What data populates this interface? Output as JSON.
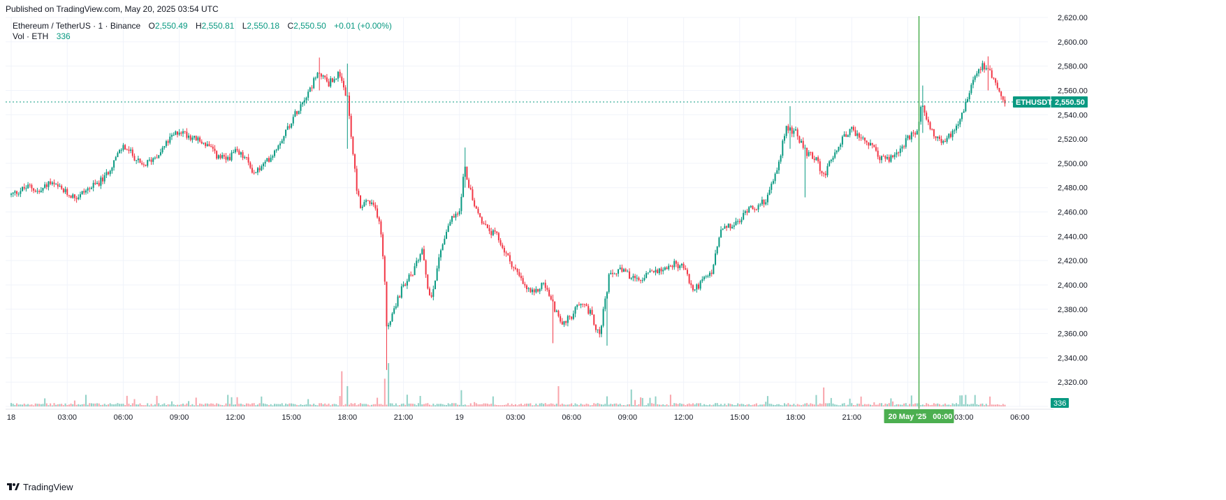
{
  "header": {
    "published": "Published on TradingView.com, May 20, 2025 03:54 UTC"
  },
  "legend": {
    "symbol": "Ethereum / TetherUS · 1 · Binance",
    "open_label": "O",
    "open": "2,550.49",
    "high_label": "H",
    "high": "2,550.81",
    "low_label": "L",
    "low": "2,550.18",
    "close_label": "C",
    "close": "2,550.50",
    "change": "+0.01 (+0.00%)",
    "vol_label": "Vol · ETH",
    "vol_value": "336"
  },
  "footer": {
    "brand": "TradingView"
  },
  "colors": {
    "up": "#089981",
    "down": "#f23645",
    "crosshair": "#4caf50",
    "grid": "#f0f3fa",
    "text": "#131722"
  },
  "chart_data": {
    "type": "candlestick",
    "symbol": "ETHUSDT",
    "interval": "1",
    "timezone": "UTC",
    "y_range": [
      2300,
      2620
    ],
    "y_ticks": [
      "2,620.00",
      "2,600.00",
      "2,580.00",
      "2,560.00",
      "2,540.00",
      "2,520.00",
      "2,500.00",
      "2,480.00",
      "2,460.00",
      "2,440.00",
      "2,420.00",
      "2,400.00",
      "2,380.00",
      "2,360.00",
      "2,340.00",
      "2,320.00",
      "2,300.00"
    ],
    "x_ticks": [
      "18",
      "03:00",
      "06:00",
      "09:00",
      "12:00",
      "15:00",
      "18:00",
      "21:00",
      "19",
      "03:00",
      "06:00",
      "09:00",
      "12:00",
      "15:00",
      "18:00",
      "21:00",
      "20",
      "03:00",
      "06:00"
    ],
    "x_tick_hours": [
      0,
      3,
      6,
      9,
      12,
      15,
      18,
      21,
      24,
      27,
      30,
      33,
      36,
      39,
      42,
      45,
      48,
      51,
      54
    ],
    "x_range_hours": [
      -0.3,
      55.5
    ],
    "price_path": [
      [
        0.0,
        2474
      ],
      [
        0.5,
        2478
      ],
      [
        1.0,
        2481
      ],
      [
        1.5,
        2476
      ],
      [
        2.0,
        2484
      ],
      [
        2.5,
        2480
      ],
      [
        3.0,
        2475
      ],
      [
        3.5,
        2472
      ],
      [
        4.0,
        2478
      ],
      [
        4.5,
        2482
      ],
      [
        5.0,
        2488
      ],
      [
        5.5,
        2502
      ],
      [
        6.0,
        2514
      ],
      [
        6.5,
        2507
      ],
      [
        7.0,
        2497
      ],
      [
        7.5,
        2503
      ],
      [
        8.0,
        2510
      ],
      [
        8.5,
        2520
      ],
      [
        9.0,
        2527
      ],
      [
        9.5,
        2523
      ],
      [
        10.0,
        2519
      ],
      [
        10.5,
        2515
      ],
      [
        11.0,
        2506
      ],
      [
        11.5,
        2503
      ],
      [
        12.0,
        2509
      ],
      [
        12.5,
        2505
      ],
      [
        13.0,
        2492
      ],
      [
        13.5,
        2498
      ],
      [
        14.0,
        2508
      ],
      [
        14.5,
        2521
      ],
      [
        15.0,
        2535
      ],
      [
        15.5,
        2549
      ],
      [
        16.0,
        2562
      ],
      [
        16.5,
        2575
      ],
      [
        17.0,
        2566
      ],
      [
        17.5,
        2573
      ],
      [
        18.0,
        2553
      ],
      [
        18.25,
        2515
      ],
      [
        18.5,
        2480
      ],
      [
        18.75,
        2462
      ],
      [
        19.0,
        2470
      ],
      [
        19.5,
        2462
      ],
      [
        19.75,
        2452
      ],
      [
        20.0,
        2405
      ],
      [
        20.12,
        2360
      ],
      [
        20.25,
        2368
      ],
      [
        20.5,
        2380
      ],
      [
        21.0,
        2400
      ],
      [
        21.5,
        2410
      ],
      [
        22.0,
        2430
      ],
      [
        22.25,
        2400
      ],
      [
        22.5,
        2390
      ],
      [
        23.0,
        2430
      ],
      [
        23.5,
        2453
      ],
      [
        24.0,
        2460
      ],
      [
        24.25,
        2498
      ],
      [
        24.5,
        2482
      ],
      [
        25.0,
        2458
      ],
      [
        25.5,
        2445
      ],
      [
        26.0,
        2440
      ],
      [
        26.5,
        2425
      ],
      [
        27.0,
        2412
      ],
      [
        27.5,
        2398
      ],
      [
        28.0,
        2392
      ],
      [
        28.5,
        2402
      ],
      [
        29.0,
        2384
      ],
      [
        29.5,
        2368
      ],
      [
        30.0,
        2374
      ],
      [
        30.5,
        2387
      ],
      [
        31.0,
        2377
      ],
      [
        31.5,
        2358
      ],
      [
        32.0,
        2406
      ],
      [
        32.5,
        2412
      ],
      [
        33.0,
        2409
      ],
      [
        33.5,
        2403
      ],
      [
        34.0,
        2408
      ],
      [
        34.5,
        2412
      ],
      [
        35.0,
        2414
      ],
      [
        35.5,
        2417
      ],
      [
        36.0,
        2415
      ],
      [
        36.5,
        2395
      ],
      [
        37.0,
        2403
      ],
      [
        37.5,
        2410
      ],
      [
        38.0,
        2445
      ],
      [
        38.5,
        2448
      ],
      [
        39.0,
        2452
      ],
      [
        39.5,
        2465
      ],
      [
        40.0,
        2464
      ],
      [
        40.5,
        2472
      ],
      [
        41.0,
        2495
      ],
      [
        41.5,
        2530
      ],
      [
        42.0,
        2525
      ],
      [
        42.5,
        2510
      ],
      [
        43.0,
        2505
      ],
      [
        43.5,
        2490
      ],
      [
        44.0,
        2505
      ],
      [
        44.5,
        2521
      ],
      [
        45.0,
        2528
      ],
      [
        45.5,
        2520
      ],
      [
        46.0,
        2515
      ],
      [
        46.5,
        2505
      ],
      [
        47.0,
        2503
      ],
      [
        47.5,
        2510
      ],
      [
        48.0,
        2520
      ],
      [
        48.5,
        2526
      ],
      [
        48.75,
        2548
      ],
      [
        49.0,
        2538
      ],
      [
        49.5,
        2520
      ],
      [
        50.0,
        2518
      ],
      [
        50.5,
        2528
      ],
      [
        51.0,
        2545
      ],
      [
        51.5,
        2570
      ],
      [
        52.0,
        2582
      ],
      [
        52.5,
        2573
      ],
      [
        53.0,
        2555
      ],
      [
        53.25,
        2550.5
      ]
    ],
    "events": [
      {
        "hour": 20.1,
        "low": 2330,
        "high": 2392
      },
      {
        "hour": 18.0,
        "low": 2512,
        "high": 2582
      },
      {
        "hour": 31.9,
        "low": 2350,
        "high": 2378
      },
      {
        "hour": 24.3,
        "low": 2480,
        "high": 2513
      },
      {
        "hour": 41.7,
        "low": 2512,
        "high": 2547
      },
      {
        "hour": 42.5,
        "low": 2472,
        "high": 2510
      },
      {
        "hour": 48.8,
        "low": 2525,
        "high": 2564
      },
      {
        "hour": 52.3,
        "low": 2560,
        "high": 2588
      },
      {
        "hour": 16.5,
        "low": 2560,
        "high": 2587
      },
      {
        "hour": 29.0,
        "low": 2352,
        "high": 2392
      }
    ],
    "volume_spikes": [
      {
        "hour": 17.7,
        "vol": 5200
      },
      {
        "hour": 18.0,
        "vol": 3000
      },
      {
        "hour": 20.0,
        "vol": 4100
      },
      {
        "hour": 20.2,
        "vol": 6400
      },
      {
        "hour": 24.1,
        "vol": 2400
      },
      {
        "hour": 29.3,
        "vol": 3000
      },
      {
        "hour": 33.2,
        "vol": 2500
      },
      {
        "hour": 43.5,
        "vol": 2800
      }
    ],
    "last_price": "2,550.50",
    "last_price_label": "ETHUSDT",
    "last_value": 2550.5,
    "last_volume": "336",
    "crosshair": {
      "hour": 48.6,
      "label": "20 May '25   00:00"
    }
  }
}
